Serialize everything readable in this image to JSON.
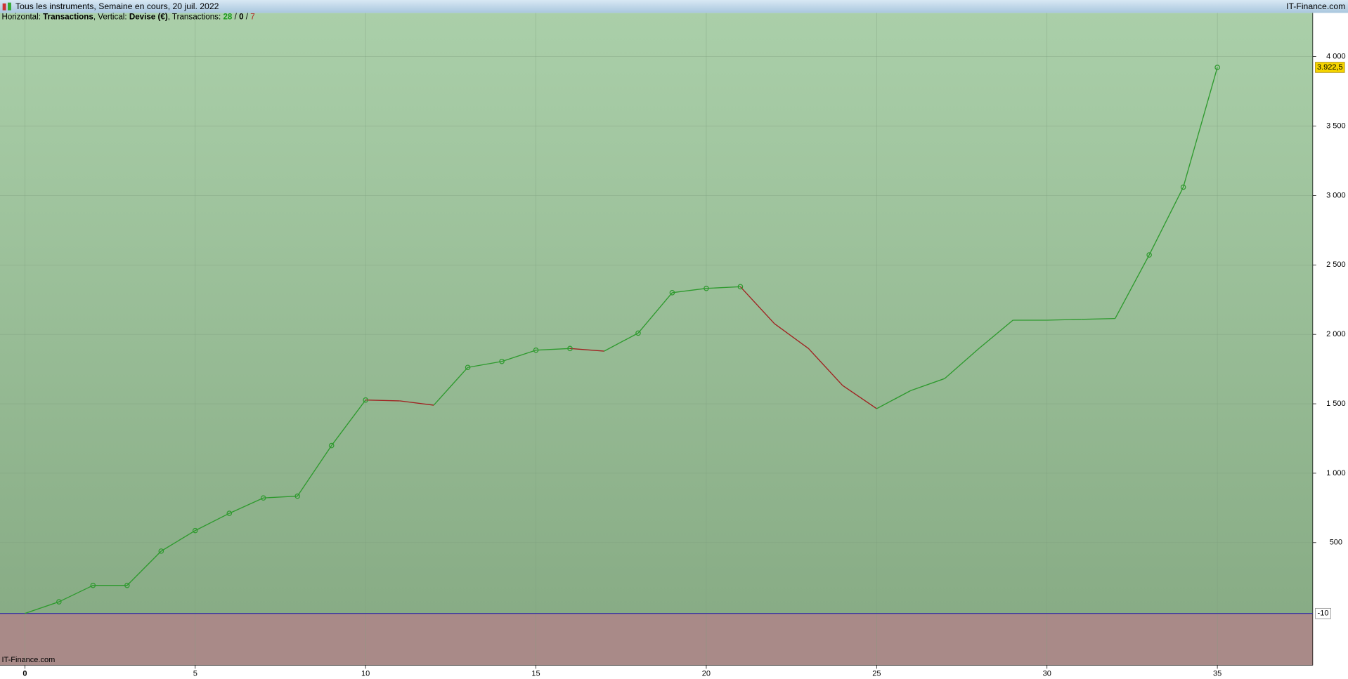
{
  "header": {
    "title": "Tous les instruments, Semaine en cours, 20 juil. 2022",
    "brand": "IT-Finance.com"
  },
  "subtitle": {
    "h_label": "Horizontal: ",
    "h_value": "Transactions",
    "v_label": ", Vertical: ",
    "v_value": "Devise (€)",
    "t_label": ", Transactions: ",
    "wins": "28",
    "sep1": " / ",
    "even": "0",
    "sep2": " / ",
    "losses": "7"
  },
  "watermark": "IT-Finance.com",
  "chart_data": {
    "type": "line",
    "x": [
      0,
      1,
      2,
      3,
      4,
      5,
      6,
      7,
      8,
      9,
      10,
      11,
      12,
      13,
      14,
      15,
      16,
      17,
      18,
      19,
      20,
      21,
      22,
      23,
      24,
      25,
      26,
      27,
      28,
      29,
      30,
      31,
      32,
      33,
      34,
      35
    ],
    "values": [
      -10,
      74,
      192,
      192,
      439,
      587,
      711,
      822,
      835,
      1199,
      1527,
      1521,
      1490,
      1762,
      1805,
      1886,
      1898,
      1879,
      2009,
      2300,
      2331,
      2343,
      2077,
      1898,
      1632,
      1465,
      1595,
      1682,
      1898,
      2102,
      2102,
      2108,
      2114,
      2572,
      3060,
      3922.5
    ],
    "value_labels": [
      null,
      null,
      null,
      null,
      null,
      null,
      null,
      null,
      null,
      null,
      null,
      null,
      null,
      null,
      null,
      null,
      null,
      null,
      null,
      null,
      null,
      null,
      null,
      null,
      null,
      null,
      null,
      null,
      null,
      null,
      null,
      null,
      null,
      null,
      null,
      "3.922,5"
    ],
    "marker_indices": [
      1,
      2,
      3,
      4,
      5,
      6,
      7,
      8,
      9,
      10,
      13,
      14,
      15,
      16,
      18,
      19,
      20,
      21,
      33,
      34,
      35
    ],
    "up_color": "#2e9a2e",
    "down_color": "#a02020",
    "baseline": -10,
    "xlim": [
      -0.73,
      37.8
    ],
    "ylim": [
      -383,
      4315
    ],
    "xticks": [
      0,
      5,
      10,
      15,
      20,
      25,
      30,
      35
    ],
    "yticks": [
      500,
      {
        "value": 1000,
        "label": "1 000"
      },
      {
        "value": 1500,
        "label": "1 500"
      },
      {
        "value": 2000,
        "label": "2 000"
      },
      {
        "value": 2500,
        "label": "2 500"
      },
      {
        "value": 3000,
        "label": "3 000"
      },
      {
        "value": 3500,
        "label": "3 500"
      },
      {
        "value": 4000,
        "label": "4 000"
      }
    ],
    "grid": true
  }
}
